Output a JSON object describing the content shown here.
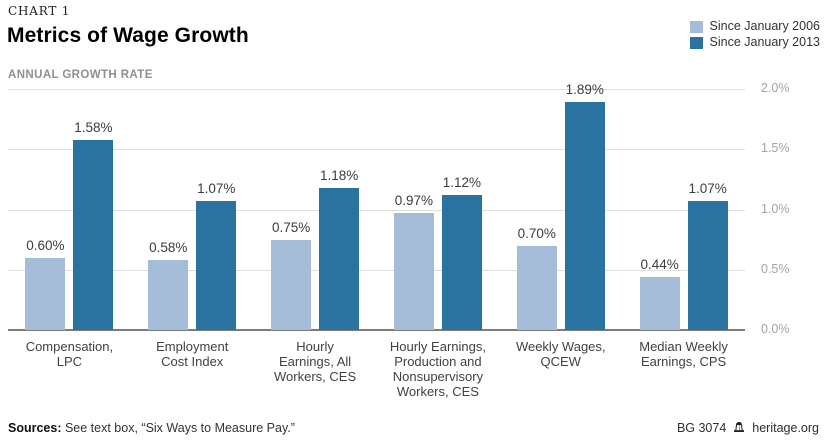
{
  "header": {
    "kicker": "CHART 1",
    "title": "Metrics of Wage Growth",
    "axis_note": "ANNUAL GROWTH RATE"
  },
  "legend": [
    {
      "label": "Since January 2006",
      "color": "#a6bdda"
    },
    {
      "label": "Since January 2013",
      "color": "#2a72a0"
    }
  ],
  "chart_data": {
    "type": "bar",
    "title": "Metrics of Wage Growth",
    "subtitle": "ANNUAL GROWTH RATE",
    "categories": [
      [
        "Compensation,",
        "LPC"
      ],
      [
        "Employment",
        "Cost Index"
      ],
      [
        "Hourly",
        "Earnings, All",
        "Workers, CES"
      ],
      [
        "Hourly Earnings,",
        "Production and",
        "Nonsupervisory",
        "Workers, CES"
      ],
      [
        "Weekly Wages,",
        "QCEW"
      ],
      [
        "Median Weekly",
        "Earnings, CPS"
      ]
    ],
    "series": [
      {
        "name": "Since January 2006",
        "color": "#a6bdda",
        "values": [
          0.6,
          0.58,
          0.75,
          0.97,
          0.7,
          0.44
        ],
        "labels": [
          "0.60%",
          "0.58%",
          "0.75%",
          "0.97%",
          "0.70%",
          "0.44%"
        ]
      },
      {
        "name": "Since January 2013",
        "color": "#2a72a0",
        "values": [
          1.58,
          1.07,
          1.18,
          1.12,
          1.89,
          1.07
        ],
        "labels": [
          "1.58%",
          "1.07%",
          "1.18%",
          "1.12%",
          "1.89%",
          "1.07%"
        ]
      }
    ],
    "xlabel": "",
    "ylabel": "",
    "ylim": [
      0,
      2.0
    ],
    "yticks": [
      {
        "value": 0.0,
        "label": "0.0%"
      },
      {
        "value": 0.5,
        "label": "0.5%"
      },
      {
        "value": 1.0,
        "label": "1.0%"
      },
      {
        "value": 1.5,
        "label": "1.5%"
      },
      {
        "value": 2.0,
        "label": "2.0%"
      }
    ],
    "grid": true,
    "legend_position": "top-right"
  },
  "footer": {
    "sources_label": "Sources:",
    "sources_text": " See text box, “Six Ways to Measure Pay.”",
    "report_id": "BG 3074",
    "logo_icon": "liberty-bell-icon",
    "site": "heritage.org"
  },
  "colors": {
    "series_2006": "#a6bdda",
    "series_2013": "#2a72a0",
    "gridline": "#dedede",
    "baseline": "#7d7d7d",
    "tick_text": "#a4a4a4"
  }
}
